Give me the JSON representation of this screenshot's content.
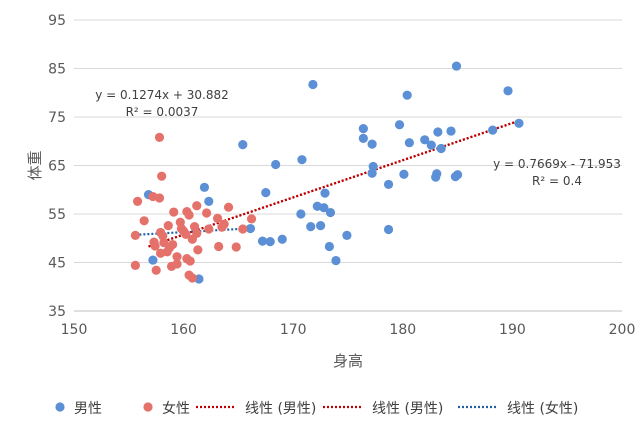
{
  "chart_data": {
    "type": "scatter",
    "xlabel": "身高",
    "ylabel": "体重",
    "xlim": [
      150,
      200
    ],
    "ylim": [
      35,
      95
    ],
    "xticks": [
      150,
      160,
      170,
      180,
      190,
      200
    ],
    "yticks": [
      35,
      45,
      55,
      65,
      75,
      85,
      95
    ],
    "grid": "horizontal",
    "legend_position": "bottom",
    "series": [
      {
        "name": "男性",
        "color": "#5b8fd6",
        "points": [
          [
            184.9,
            85.5
          ],
          [
            171.8,
            81.7
          ],
          [
            189.6,
            80.4
          ],
          [
            180.4,
            79.5
          ],
          [
            190.6,
            73.7
          ],
          [
            179.7,
            73.4
          ],
          [
            176.4,
            72.6
          ],
          [
            188.2,
            72.3
          ],
          [
            184.4,
            72.1
          ],
          [
            183.2,
            71.9
          ],
          [
            176.4,
            70.6
          ],
          [
            182.0,
            70.3
          ],
          [
            177.2,
            69.4
          ],
          [
            182.6,
            69.2
          ],
          [
            180.6,
            69.7
          ],
          [
            165.4,
            69.3
          ],
          [
            183.5,
            68.5
          ],
          [
            170.8,
            66.2
          ],
          [
            168.4,
            65.2
          ],
          [
            177.3,
            64.8
          ],
          [
            177.2,
            63.4
          ],
          [
            185.0,
            63.1
          ],
          [
            183.1,
            63.3
          ],
          [
            180.1,
            63.2
          ],
          [
            184.8,
            62.7
          ],
          [
            183.0,
            62.6
          ],
          [
            178.7,
            61.1
          ],
          [
            161.9,
            60.5
          ],
          [
            167.5,
            59.4
          ],
          [
            172.9,
            59.3
          ],
          [
            156.8,
            59.0
          ],
          [
            162.3,
            57.6
          ],
          [
            172.2,
            56.6
          ],
          [
            172.8,
            56.3
          ],
          [
            173.4,
            55.3
          ],
          [
            170.7,
            55.0
          ],
          [
            172.5,
            52.6
          ],
          [
            171.6,
            52.4
          ],
          [
            178.7,
            51.8
          ],
          [
            166.1,
            52.0
          ],
          [
            174.9,
            50.6
          ],
          [
            169.0,
            49.8
          ],
          [
            167.2,
            49.4
          ],
          [
            167.9,
            49.3
          ],
          [
            173.3,
            48.3
          ],
          [
            157.2,
            45.5
          ],
          [
            173.9,
            45.4
          ],
          [
            161.4,
            41.6
          ]
        ]
      },
      {
        "name": "女性",
        "color": "#e5716b",
        "points": [
          [
            157.8,
            70.8
          ],
          [
            158.0,
            62.8
          ],
          [
            157.2,
            58.6
          ],
          [
            157.8,
            58.3
          ],
          [
            155.8,
            57.6
          ],
          [
            161.2,
            56.7
          ],
          [
            164.1,
            56.4
          ],
          [
            159.1,
            55.4
          ],
          [
            160.3,
            55.5
          ],
          [
            162.1,
            55.2
          ],
          [
            160.5,
            54.8
          ],
          [
            163.1,
            54.1
          ],
          [
            166.2,
            54.0
          ],
          [
            156.4,
            53.6
          ],
          [
            159.7,
            53.3
          ],
          [
            163.7,
            52.9
          ],
          [
            158.6,
            52.6
          ],
          [
            161.0,
            52.4
          ],
          [
            163.5,
            52.3
          ],
          [
            159.8,
            52.0
          ],
          [
            162.3,
            51.9
          ],
          [
            165.4,
            51.9
          ],
          [
            160.0,
            51.5
          ],
          [
            157.9,
            51.2
          ],
          [
            161.2,
            51.0
          ],
          [
            160.2,
            50.8
          ],
          [
            158.1,
            50.5
          ],
          [
            155.6,
            50.6
          ],
          [
            160.8,
            49.8
          ],
          [
            157.3,
            49.2
          ],
          [
            158.2,
            49.1
          ],
          [
            159.0,
            48.7
          ],
          [
            157.4,
            48.4
          ],
          [
            158.7,
            48.0
          ],
          [
            163.2,
            48.3
          ],
          [
            164.8,
            48.2
          ],
          [
            161.3,
            47.6
          ],
          [
            158.5,
            47.2
          ],
          [
            157.9,
            46.9
          ],
          [
            159.4,
            46.2
          ],
          [
            160.3,
            45.8
          ],
          [
            160.6,
            45.3
          ],
          [
            159.4,
            44.7
          ],
          [
            155.6,
            44.4
          ],
          [
            158.9,
            44.2
          ],
          [
            157.5,
            43.4
          ],
          [
            160.5,
            42.4
          ],
          [
            160.8,
            41.8
          ]
        ]
      }
    ],
    "trendlines": [
      {
        "name": "线性 (男性)",
        "color": "#c00000",
        "style": "dotted",
        "slope": 0.7669,
        "intercept": -71.953,
        "x_range": [
          156.8,
          190.6
        ]
      },
      {
        "name": "线性 (男性)",
        "color": "#c00000",
        "style": "dotted",
        "slope": 0.7669,
        "intercept": -71.953,
        "x_range": [
          156.8,
          190.6
        ]
      },
      {
        "name": "线性 (女性)",
        "color": "#1f5fa8",
        "style": "dotted",
        "slope": 0.1274,
        "intercept": 30.882,
        "x_range": [
          155.6,
          166.2
        ]
      }
    ],
    "annotations": [
      {
        "name": "female-equation",
        "lines": [
          "y = 0.1274x + 30.882",
          "R² = 0.0037"
        ]
      },
      {
        "name": "male-equation",
        "lines": [
          "y = 0.7669x - 71.953",
          "R² = 0.4"
        ]
      }
    ]
  }
}
